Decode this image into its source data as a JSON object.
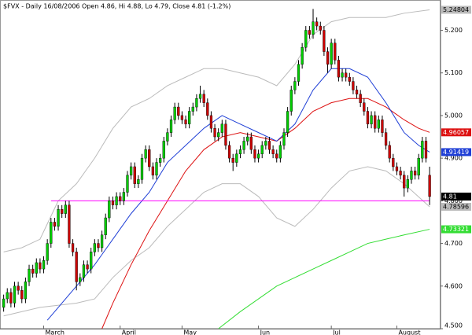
{
  "chart_data": {
    "type": "candlestick",
    "title": "$FVX - Daily 16/08/2006 Open 4.86, Hi 4.88, Lo 4.79, Close 4.81 (-1.2%)",
    "up_color": "#00cc00",
    "down_color": "#cc0000",
    "xlim": [
      -1,
      120
    ],
    "ylim": [
      4.5,
      5.271
    ],
    "yticks": [
      {
        "value": 4.5,
        "label": "4.500"
      },
      {
        "value": 4.6,
        "label": "4.600"
      },
      {
        "value": 4.7,
        "label": "4.700"
      },
      {
        "value": 4.8,
        "label": "4.800"
      },
      {
        "value": 4.9,
        "label": "4.900"
      },
      {
        "value": 5.0,
        "label": "5.000"
      },
      {
        "value": 5.1,
        "label": "5.100"
      },
      {
        "value": 5.2,
        "label": "5.200"
      }
    ],
    "xticks": [
      {
        "value": 11,
        "label": "March"
      },
      {
        "value": 32,
        "label": "April"
      },
      {
        "value": 49,
        "label": "May"
      },
      {
        "value": 70,
        "label": "Jun"
      },
      {
        "value": 90,
        "label": "Jul"
      },
      {
        "value": 108,
        "label": "August"
      }
    ],
    "ohlc": {
      "open": [
        4.55,
        4.57,
        4.585,
        4.56,
        4.6,
        4.59,
        4.57,
        4.61,
        4.64,
        4.63,
        4.655,
        4.64,
        4.66,
        4.7,
        4.75,
        4.74,
        4.78,
        4.77,
        4.79,
        4.7,
        4.68,
        4.61,
        4.62,
        4.65,
        4.64,
        4.68,
        4.7,
        4.69,
        4.72,
        4.76,
        4.8,
        4.79,
        4.81,
        4.8,
        4.82,
        4.86,
        4.88,
        4.84,
        4.85,
        4.9,
        4.92,
        4.88,
        4.86,
        4.89,
        4.9,
        4.94,
        4.96,
        4.99,
        5.02,
        5.0,
        4.99,
        4.98,
        5.01,
        5.02,
        5.04,
        5.05,
        5.03,
        5.0,
        4.97,
        4.95,
        4.96,
        4.98,
        4.93,
        4.9,
        4.89,
        4.91,
        4.92,
        4.94,
        4.95,
        4.92,
        4.9,
        4.91,
        4.93,
        4.94,
        4.92,
        4.91,
        4.9,
        4.93,
        4.96,
        5.01,
        5.06,
        5.08,
        5.12,
        5.16,
        5.2,
        5.19,
        5.22,
        5.21,
        5.2,
        5.15,
        5.12,
        5.17,
        5.13,
        5.09,
        5.1,
        5.09,
        5.08,
        5.06,
        5.05,
        5.03,
        5.01,
        4.98,
        5.0,
        4.97,
        4.99,
        4.96,
        4.93,
        4.9,
        4.88,
        4.87,
        4.86,
        4.83,
        4.85,
        4.87,
        4.86,
        4.9,
        4.94,
        4.86
      ],
      "high": [
        4.58,
        4.595,
        4.595,
        4.61,
        4.61,
        4.6,
        4.62,
        4.65,
        4.65,
        4.665,
        4.665,
        4.67,
        4.71,
        4.76,
        4.76,
        4.79,
        4.79,
        4.8,
        4.8,
        4.71,
        4.69,
        4.63,
        4.66,
        4.66,
        4.69,
        4.71,
        4.71,
        4.73,
        4.77,
        4.81,
        4.81,
        4.82,
        4.82,
        4.83,
        4.87,
        4.89,
        4.89,
        4.86,
        4.91,
        4.93,
        4.93,
        4.89,
        4.9,
        4.91,
        4.95,
        4.97,
        5.0,
        5.03,
        5.03,
        5.01,
        5.0,
        5.02,
        5.03,
        5.05,
        5.07,
        5.06,
        5.04,
        5.01,
        4.98,
        4.97,
        4.99,
        4.99,
        4.94,
        4.91,
        4.92,
        4.93,
        4.95,
        4.96,
        4.96,
        4.93,
        4.92,
        4.94,
        4.95,
        4.95,
        4.93,
        4.92,
        4.94,
        4.97,
        5.02,
        5.07,
        5.09,
        5.13,
        5.17,
        5.21,
        5.21,
        5.25,
        5.23,
        5.22,
        5.21,
        5.16,
        5.18,
        5.18,
        5.14,
        5.11,
        5.11,
        5.1,
        5.09,
        5.07,
        5.06,
        5.04,
        5.02,
        5.01,
        5.01,
        5.0,
        5.0,
        4.97,
        4.94,
        4.91,
        4.89,
        4.88,
        4.87,
        4.86,
        4.88,
        4.88,
        4.91,
        4.95,
        4.95,
        4.88
      ],
      "low": [
        4.54,
        4.56,
        4.55,
        4.55,
        4.58,
        4.56,
        4.56,
        4.6,
        4.62,
        4.62,
        4.63,
        4.63,
        4.65,
        4.69,
        4.73,
        4.73,
        4.76,
        4.76,
        4.69,
        4.67,
        4.59,
        4.6,
        4.61,
        4.63,
        4.63,
        4.67,
        4.68,
        4.68,
        4.71,
        4.75,
        4.78,
        4.78,
        4.79,
        4.79,
        4.81,
        4.85,
        4.83,
        4.83,
        4.84,
        4.89,
        4.87,
        4.85,
        4.85,
        4.88,
        4.89,
        4.93,
        4.95,
        4.98,
        4.99,
        4.98,
        4.97,
        4.97,
        5.0,
        5.01,
        5.03,
        5.02,
        4.99,
        4.96,
        4.94,
        4.94,
        4.95,
        4.92,
        4.89,
        4.87,
        4.88,
        4.9,
        4.91,
        4.93,
        4.91,
        4.89,
        4.89,
        4.9,
        4.92,
        4.91,
        4.9,
        4.89,
        4.89,
        4.92,
        4.95,
        5.0,
        5.05,
        5.07,
        5.11,
        5.15,
        5.18,
        5.18,
        5.2,
        5.19,
        5.14,
        5.1,
        5.11,
        5.12,
        5.08,
        5.08,
        5.08,
        5.07,
        5.05,
        5.04,
        5.02,
        5.0,
        4.97,
        4.97,
        4.96,
        4.96,
        4.95,
        4.92,
        4.89,
        4.87,
        4.86,
        4.85,
        4.81,
        4.82,
        4.84,
        4.85,
        4.85,
        4.89,
        4.89,
        4.79
      ],
      "close": [
        4.57,
        4.585,
        4.56,
        4.6,
        4.59,
        4.57,
        4.61,
        4.64,
        4.63,
        4.655,
        4.64,
        4.66,
        4.7,
        4.75,
        4.74,
        4.78,
        4.77,
        4.79,
        4.7,
        4.68,
        4.61,
        4.62,
        4.65,
        4.64,
        4.68,
        4.7,
        4.69,
        4.72,
        4.76,
        4.8,
        4.79,
        4.81,
        4.8,
        4.82,
        4.86,
        4.88,
        4.84,
        4.85,
        4.9,
        4.92,
        4.88,
        4.86,
        4.89,
        4.9,
        4.94,
        4.96,
        4.99,
        5.02,
        5.0,
        4.99,
        4.98,
        5.01,
        5.02,
        5.04,
        5.05,
        5.03,
        5.0,
        4.97,
        4.95,
        4.96,
        4.98,
        4.93,
        4.9,
        4.89,
        4.91,
        4.92,
        4.94,
        4.95,
        4.92,
        4.9,
        4.91,
        4.93,
        4.94,
        4.92,
        4.91,
        4.9,
        4.93,
        4.96,
        5.01,
        5.06,
        5.08,
        5.12,
        5.16,
        5.2,
        5.19,
        5.22,
        5.21,
        5.2,
        5.15,
        5.12,
        5.17,
        5.13,
        5.09,
        5.1,
        5.09,
        5.08,
        5.06,
        5.05,
        5.03,
        5.01,
        4.98,
        5.0,
        4.97,
        4.99,
        4.96,
        4.93,
        4.9,
        4.88,
        4.87,
        4.86,
        4.83,
        4.85,
        4.87,
        4.86,
        4.9,
        4.94,
        4.9,
        4.81
      ]
    },
    "close_label_color": "#000000",
    "series": [
      {
        "color": "#bbbbbb",
        "end_label": true,
        "x": [
          0,
          5,
          10,
          15,
          20,
          25,
          30,
          35,
          40,
          45,
          50,
          55,
          60,
          65,
          70,
          75,
          80,
          85,
          90,
          95,
          100,
          105,
          110,
          117
        ],
        "values": [
          4.68,
          4.69,
          4.71,
          4.8,
          4.84,
          4.9,
          4.97,
          5.02,
          5.04,
          5.07,
          5.09,
          5.11,
          5.11,
          5.1,
          5.09,
          5.07,
          5.12,
          5.19,
          5.22,
          5.23,
          5.23,
          5.23,
          5.24,
          5.24804
        ]
      },
      {
        "color": "#bbbbbb",
        "end_label": true,
        "x": [
          0,
          10,
          20,
          25,
          30,
          35,
          40,
          45,
          50,
          55,
          60,
          65,
          70,
          75,
          80,
          85,
          90,
          95,
          100,
          105,
          110,
          117
        ],
        "values": [
          4.53,
          4.55,
          4.56,
          4.57,
          4.62,
          4.66,
          4.69,
          4.74,
          4.78,
          4.82,
          4.84,
          4.84,
          4.81,
          4.76,
          4.74,
          4.78,
          4.83,
          4.87,
          4.88,
          4.87,
          4.84,
          4.78596
        ]
      },
      {
        "color": "#dd1111",
        "end_label": true,
        "x": [
          27,
          30,
          35,
          40,
          45,
          50,
          55,
          60,
          65,
          70,
          75,
          80,
          85,
          90,
          95,
          100,
          105,
          110,
          114,
          117
        ],
        "values": [
          4.5,
          4.56,
          4.65,
          4.73,
          4.8,
          4.87,
          4.92,
          4.95,
          4.96,
          4.95,
          4.94,
          4.97,
          5.01,
          5.03,
          5.04,
          5.04,
          5.02,
          4.99,
          4.97,
          4.96057
        ]
      },
      {
        "color": "#1f3fd6",
        "end_label": true,
        "x": [
          12,
          15,
          20,
          25,
          30,
          35,
          40,
          45,
          50,
          55,
          60,
          65,
          70,
          75,
          80,
          85,
          90,
          95,
          100,
          105,
          110,
          114,
          117
        ],
        "values": [
          4.52,
          4.55,
          4.6,
          4.65,
          4.71,
          4.77,
          4.82,
          4.89,
          4.93,
          4.97,
          5.0,
          4.98,
          4.96,
          4.94,
          4.98,
          5.06,
          5.11,
          5.11,
          5.09,
          5.03,
          4.96,
          4.93,
          4.91419
        ]
      },
      {
        "color": "#33dd33",
        "end_label": true,
        "x": [
          59,
          65,
          70,
          75,
          80,
          85,
          90,
          95,
          100,
          105,
          110,
          117
        ],
        "values": [
          4.5,
          4.54,
          4.57,
          4.6,
          4.62,
          4.64,
          4.66,
          4.68,
          4.7,
          4.71,
          4.72,
          4.73321
        ]
      },
      {
        "color": "#ff00ff",
        "end_label": false,
        "x": [
          13,
          117
        ],
        "values": [
          4.8,
          4.8
        ]
      }
    ]
  }
}
